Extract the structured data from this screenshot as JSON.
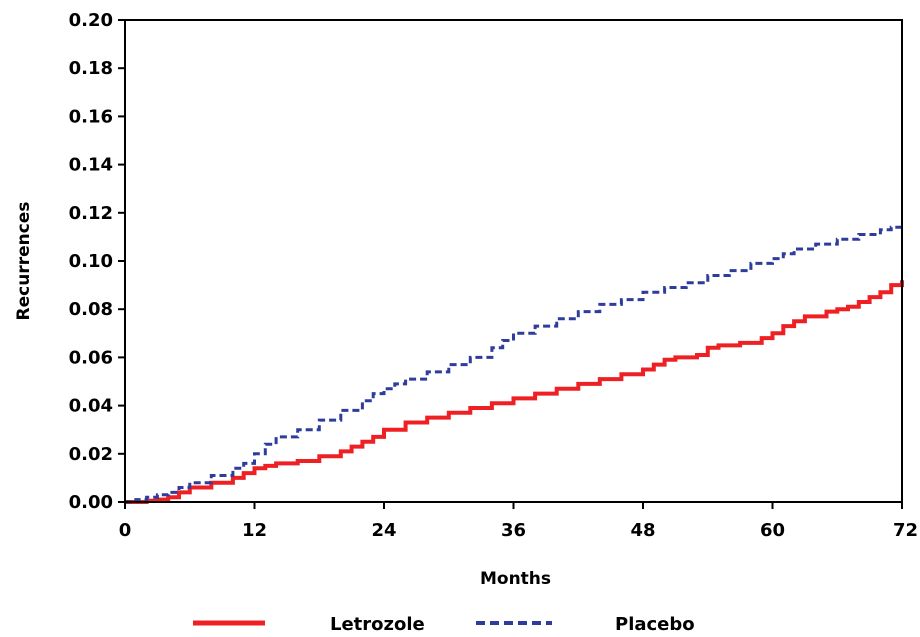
{
  "chart_data": {
    "type": "line",
    "title": "",
    "xlabel": "Months",
    "ylabel": "Recurrences",
    "xlim": [
      0,
      72
    ],
    "ylim": [
      0,
      0.2
    ],
    "x_ticks": [
      0,
      12,
      24,
      36,
      48,
      60,
      72
    ],
    "x_tick_labels": [
      "0",
      "12",
      "24",
      "36",
      "48",
      "60",
      "72"
    ],
    "y_ticks": [
      0,
      0.02,
      0.04,
      0.06,
      0.08,
      0.1,
      0.12,
      0.14,
      0.16,
      0.18,
      0.2
    ],
    "y_tick_labels": [
      "0.00",
      "0.02",
      "0.04",
      "0.06",
      "0.08",
      "0.10",
      "0.12",
      "0.14",
      "0.16",
      "0.18",
      "0.20"
    ],
    "grid": false,
    "legend_position": "bottom",
    "series": [
      {
        "name": "Letrozole",
        "color": "#ee2024",
        "style": "solid",
        "x": [
          0,
          2,
          3,
          4,
          5,
          6,
          8,
          10,
          11,
          12,
          13,
          14,
          16,
          18,
          20,
          21,
          22,
          23,
          24,
          26,
          28,
          30,
          32,
          34,
          36,
          38,
          40,
          42,
          44,
          46,
          48,
          49,
          50,
          51,
          53,
          54,
          55,
          57,
          59,
          60,
          61,
          62,
          63,
          65,
          66,
          67,
          68,
          69,
          70,
          71,
          72
        ],
        "values": [
          0,
          0.0005,
          0.001,
          0.002,
          0.004,
          0.006,
          0.008,
          0.01,
          0.012,
          0.014,
          0.015,
          0.016,
          0.017,
          0.019,
          0.021,
          0.023,
          0.025,
          0.027,
          0.03,
          0.033,
          0.035,
          0.037,
          0.039,
          0.041,
          0.043,
          0.045,
          0.047,
          0.049,
          0.051,
          0.053,
          0.055,
          0.057,
          0.059,
          0.06,
          0.061,
          0.064,
          0.065,
          0.066,
          0.068,
          0.07,
          0.073,
          0.075,
          0.077,
          0.079,
          0.08,
          0.081,
          0.083,
          0.085,
          0.087,
          0.09,
          0.092
        ]
      },
      {
        "name": "Placebo",
        "color": "#2e3d9b",
        "style": "dashed",
        "x": [
          0,
          1,
          2,
          3,
          4,
          5,
          6,
          8,
          10,
          11,
          12,
          13,
          14,
          16,
          18,
          20,
          22,
          23,
          24,
          25,
          26,
          28,
          30,
          32,
          34,
          35,
          36,
          38,
          40,
          42,
          44,
          46,
          48,
          50,
          52,
          54,
          56,
          58,
          60,
          61,
          62,
          64,
          66,
          68,
          70,
          71,
          72
        ],
        "values": [
          0,
          0.001,
          0.002,
          0.003,
          0.004,
          0.006,
          0.008,
          0.011,
          0.014,
          0.016,
          0.02,
          0.024,
          0.027,
          0.03,
          0.034,
          0.038,
          0.042,
          0.045,
          0.047,
          0.049,
          0.051,
          0.054,
          0.057,
          0.06,
          0.064,
          0.067,
          0.07,
          0.073,
          0.076,
          0.079,
          0.082,
          0.084,
          0.087,
          0.089,
          0.091,
          0.094,
          0.096,
          0.099,
          0.101,
          0.103,
          0.105,
          0.107,
          0.109,
          0.111,
          0.113,
          0.114,
          0.114
        ]
      }
    ]
  }
}
